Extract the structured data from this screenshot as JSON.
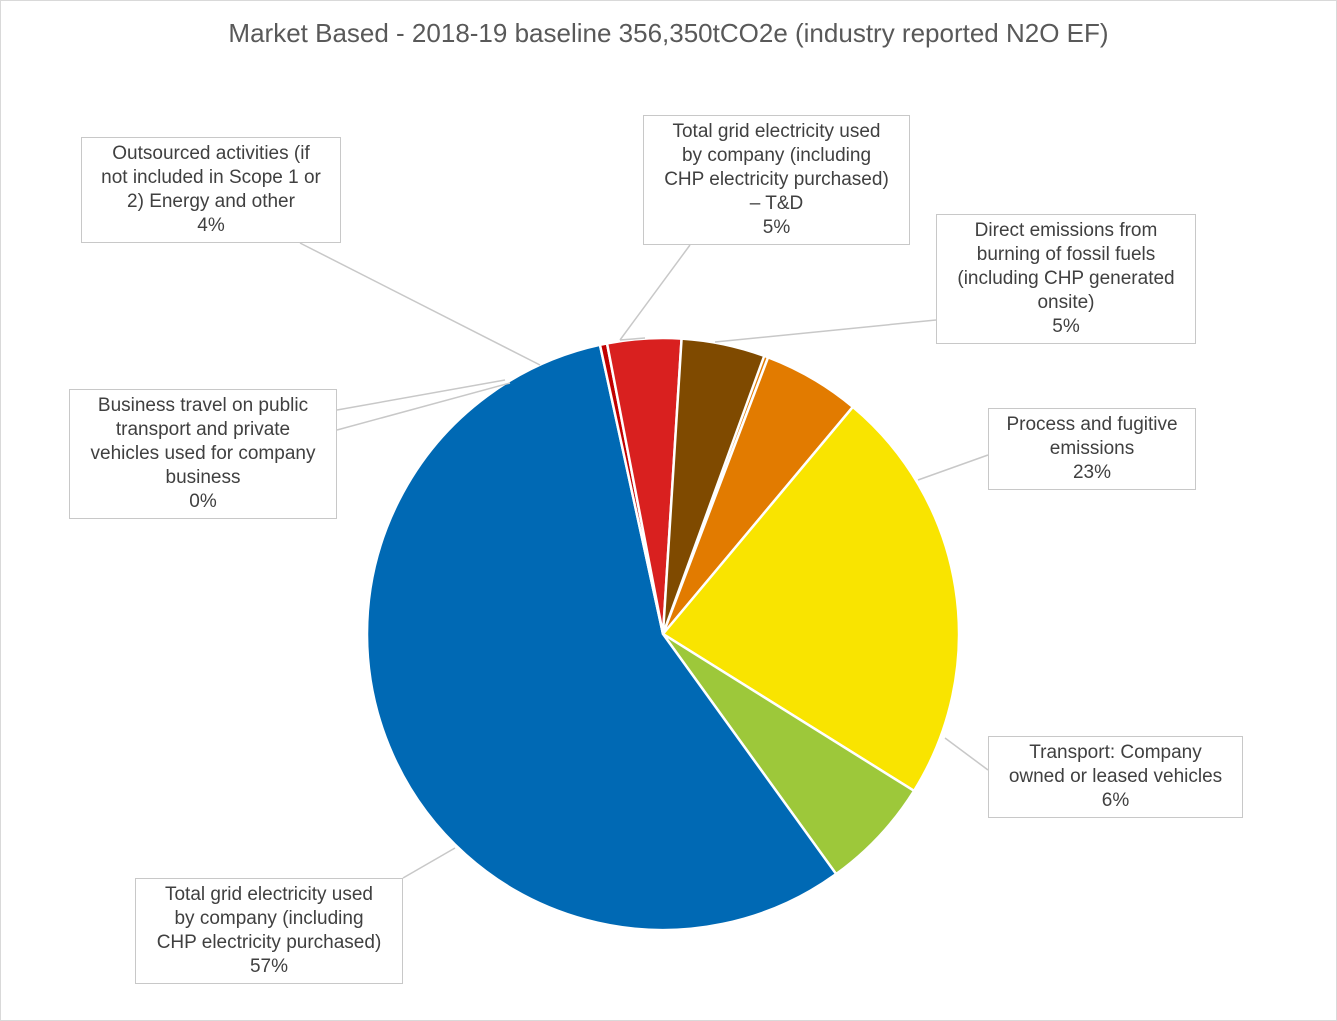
{
  "chart_data": {
    "type": "pie",
    "title": "Market Based - 2018-19 baseline 356,350tCO2e (industry reported N2O EF)",
    "slices": [
      {
        "lines": [
          "Total grid electricity used",
          "by company (including",
          "CHP electricity purchased)",
          "– T&D"
        ],
        "value": 5,
        "pct_label": "5%",
        "color": "#E27B00"
      },
      {
        "lines": [
          "Direct emissions from",
          "burning of fossil fuels",
          "(including CHP generated",
          "onsite)"
        ],
        "value": 5,
        "pct_label": "5%",
        "color": "#E27B00"
      },
      {
        "lines": [
          "Process and fugitive",
          "emissions"
        ],
        "value": 23,
        "pct_label": "23%",
        "color": "#F9E400"
      },
      {
        "lines": [
          "Transport: Company",
          "owned or leased vehicles"
        ],
        "value": 6,
        "pct_label": "6%",
        "color": "#9DC83A"
      },
      {
        "lines": [
          "Total grid electricity used",
          "by company (including",
          "CHP electricity purchased)"
        ],
        "value": 57,
        "pct_label": "57%",
        "color": "#0069B4"
      },
      {
        "lines": [
          "Business travel on public",
          "transport and private",
          "vehicles used for company",
          "business"
        ],
        "value": 0,
        "pct_label": "0%",
        "color": "#C00000"
      },
      {
        "lines": [
          "Outsourced activities (if",
          "not included in Scope 1 or",
          "2) Energy and other"
        ],
        "value": 4,
        "pct_label": "4%",
        "color": "#D9201F"
      },
      {
        "lines": [
          "Total grid electricity used",
          "by company (including",
          "CHP electricity purchased)",
          "– T&D"
        ],
        "value": 5,
        "pct_label": "5%",
        "color": "#7F4A00"
      }
    ]
  }
}
